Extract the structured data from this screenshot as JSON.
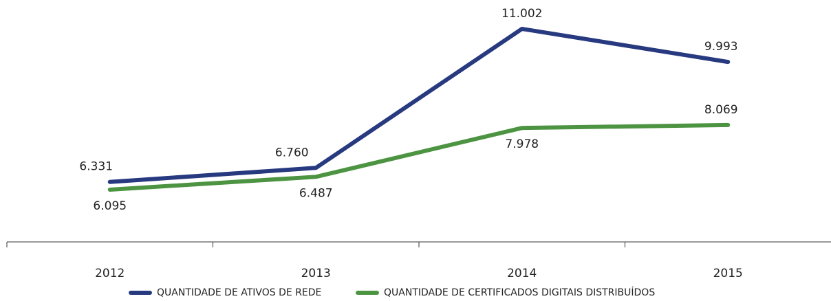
{
  "chart_data": {
    "type": "line",
    "categories": [
      "2012",
      "2013",
      "2014",
      "2015"
    ],
    "series": [
      {
        "name": "QUANTIDADE DE ATIVOS DE REDE",
        "color": "#27397f",
        "values": [
          6331,
          6760,
          11002,
          9993
        ],
        "value_labels": [
          "6.331",
          "6.760",
          "11.002",
          "9.993"
        ]
      },
      {
        "name": "QUANTIDADE DE CERTIFICADOS DIGITAIS DISTRIBUÍDOS",
        "color": "#4d9442",
        "values": [
          6095,
          6487,
          7978,
          8069
        ],
        "value_labels": [
          "6.095",
          "6.487",
          "7.978",
          "8.069"
        ]
      }
    ]
  }
}
